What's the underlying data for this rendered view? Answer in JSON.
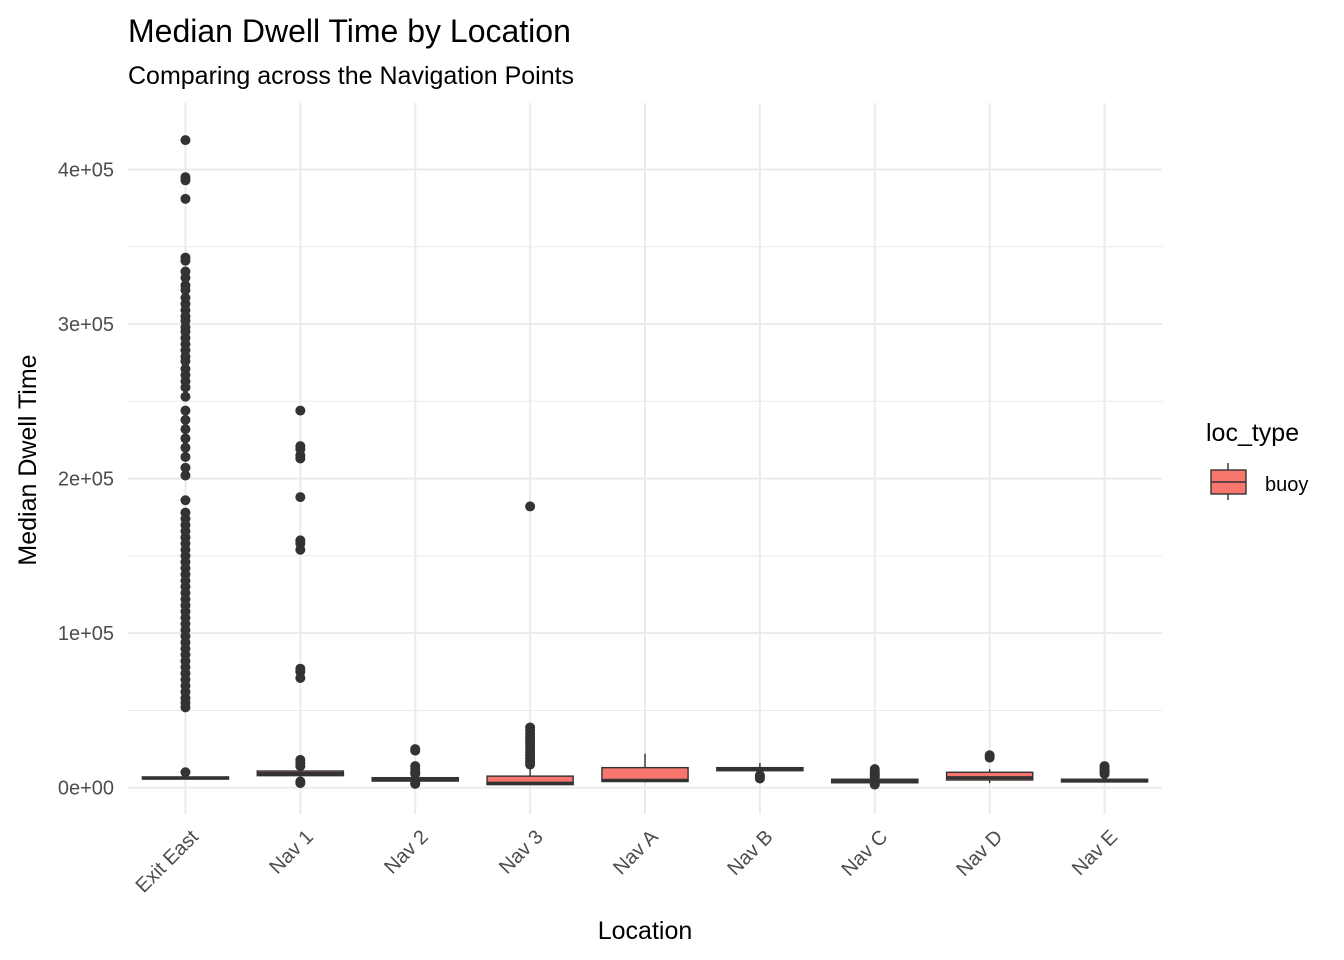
{
  "chart_data": {
    "type": "boxplot",
    "title": "Median Dwell Time by Location",
    "subtitle": "Comparing across the Navigation Points",
    "xlabel": "Location",
    "ylabel": "Median Dwell Time",
    "ylim": [
      -17000,
      443000
    ],
    "y_ticks": [
      0,
      100000,
      200000,
      300000,
      400000
    ],
    "y_tick_labels": [
      "0e+00",
      "1e+05",
      "2e+05",
      "3e+05",
      "4e+05"
    ],
    "y_minor_ticks": [
      50000,
      150000,
      250000,
      350000
    ],
    "grid": true,
    "legend": {
      "title": "loc_type",
      "position": "right",
      "entries": [
        {
          "label": "buoy",
          "color": "#F8766D"
        }
      ]
    },
    "fill_color": "#F8766D",
    "line_color": "#333333",
    "categories": [
      "Exit East",
      "Nav 1",
      "Nav 2",
      "Nav 3",
      "Nav A",
      "Nav B",
      "Nav C",
      "Nav D",
      "Nav E"
    ],
    "boxes": [
      {
        "category": "Exit East",
        "whisker_low": 5600,
        "q1": 5600,
        "median": 6200,
        "q3": 7000,
        "whisker_high": 7800,
        "outliers": [
          419000,
          395000,
          393000,
          381000,
          343000,
          341000,
          334000,
          330000,
          325000,
          322000,
          317000,
          313000,
          309000,
          305000,
          302000,
          298000,
          295000,
          291000,
          287000,
          283000,
          279000,
          276000,
          271000,
          267000,
          263000,
          259000,
          253000,
          244000,
          238000,
          232000,
          226000,
          220000,
          214000,
          207000,
          202000,
          186000,
          178000,
          174000,
          170000,
          166000,
          162000,
          158000,
          154000,
          150000,
          146000,
          142000,
          138000,
          134000,
          130000,
          126000,
          122000,
          118000,
          114000,
          110000,
          106000,
          102000,
          98000,
          94000,
          90000,
          86000,
          82000,
          78000,
          74000,
          70000,
          66000,
          62000,
          58000,
          55000,
          52000,
          10000
        ]
      },
      {
        "category": "Nav 1",
        "whisker_low": 7000,
        "q1": 7800,
        "median": 9200,
        "q3": 10800,
        "whisker_high": 11500,
        "outliers": [
          244000,
          221000,
          219000,
          215000,
          213000,
          188000,
          160000,
          158000,
          154000,
          77000,
          75000,
          71000,
          18000,
          16000,
          14000,
          4000,
          3000
        ]
      },
      {
        "category": "Nav 2",
        "whisker_low": 3500,
        "q1": 4300,
        "median": 5200,
        "q3": 6500,
        "whisker_high": 8000,
        "outliers": [
          25000,
          24000,
          14000,
          12000,
          10000,
          9000,
          3000,
          2500
        ]
      },
      {
        "category": "Nav 3",
        "whisker_low": 2000,
        "q1": 2000,
        "median": 3000,
        "q3": 7500,
        "whisker_high": 14000,
        "outliers": [
          182000,
          39000,
          37000,
          35000,
          33000,
          31000,
          29000,
          27000,
          25000,
          23000,
          21000,
          19000,
          17000,
          15000
        ]
      },
      {
        "category": "Nav A",
        "whisker_low": 3500,
        "q1": 4000,
        "median": 4800,
        "q3": 13000,
        "whisker_high": 22000,
        "outliers": []
      },
      {
        "category": "Nav B",
        "whisker_low": 10500,
        "q1": 11000,
        "median": 12000,
        "q3": 13000,
        "whisker_high": 16000,
        "outliers": [
          8000,
          7000,
          6000
        ]
      },
      {
        "category": "Nav C",
        "whisker_low": 3000,
        "q1": 3200,
        "median": 4000,
        "q3": 5500,
        "whisker_high": 6000,
        "outliers": [
          12000,
          10000,
          9000,
          8000,
          7000,
          2500,
          2000
        ]
      },
      {
        "category": "Nav D",
        "whisker_low": 3000,
        "q1": 5000,
        "median": 6500,
        "q3": 10000,
        "whisker_high": 12000,
        "outliers": [
          21000,
          19500
        ]
      },
      {
        "category": "Nav E",
        "whisker_low": 3500,
        "q1": 3800,
        "median": 4300,
        "q3": 5500,
        "whisker_high": 6500,
        "outliers": [
          14000,
          13000,
          12000,
          11000,
          10000,
          9000
        ]
      }
    ]
  }
}
